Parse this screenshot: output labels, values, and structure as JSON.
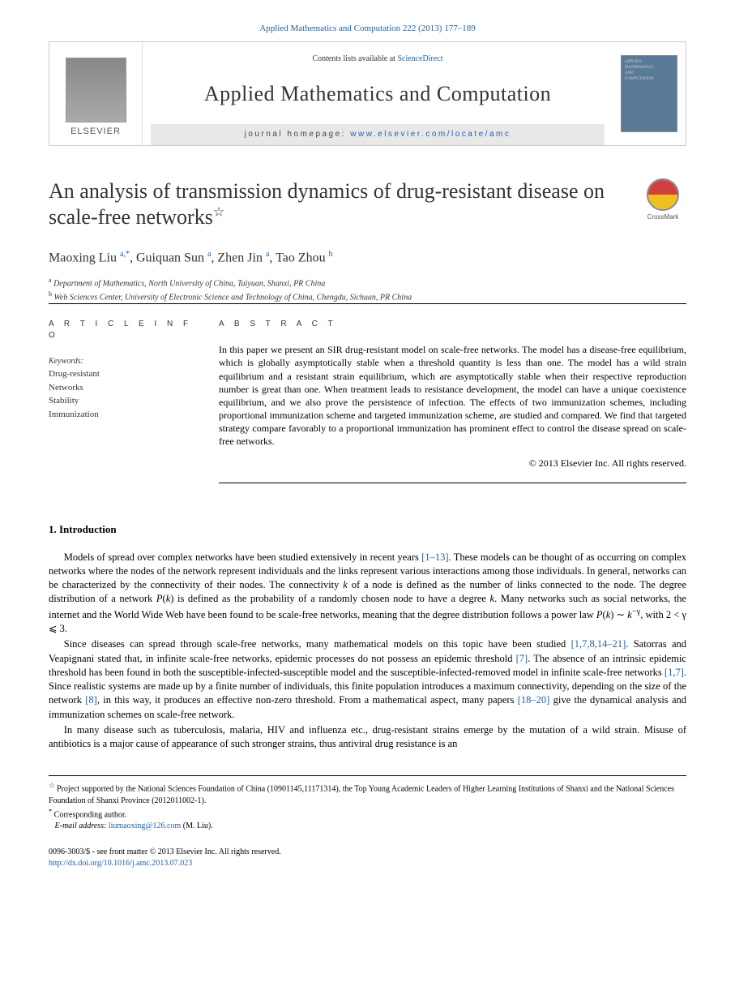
{
  "header": {
    "citation": "Applied Mathematics and Computation 222 (2013) 177–189"
  },
  "masthead": {
    "contents_prefix": "Contents lists available at ",
    "contents_link": "ScienceDirect",
    "journal_name": "Applied Mathematics and Computation",
    "homepage_prefix": "journal homepage: ",
    "homepage_url": "www.elsevier.com/locate/amc",
    "publisher": "ELSEVIER"
  },
  "article": {
    "title": "An analysis of transmission dynamics of drug-resistant disease on scale-free networks",
    "title_note_marker": "☆",
    "crossmark_label": "CrossMark",
    "authors_html": "Maoxing Liu <sup>a,*</sup>, Guiquan Sun <sup>a</sup>, Zhen Jin <sup>a</sup>, Tao Zhou <sup>b</sup>",
    "affiliations": [
      {
        "marker": "a",
        "text": "Department of Mathematics, North University of China, Taiyuan, Shanxi, PR China"
      },
      {
        "marker": "b",
        "text": "Web Sciences Center, University of Electronic Science and Technology of China, Chengdu, Sichuan, PR China"
      }
    ]
  },
  "info": {
    "heading": "A R T I C L E   I N F O",
    "keywords_label": "Keywords:",
    "keywords": [
      "Drug-resistant",
      "Networks",
      "Stability",
      "Immunization"
    ]
  },
  "abstract": {
    "heading": "A B S T R A C T",
    "text": "In this paper we present an SIR drug-resistant model on scale-free networks. The model has a disease-free equilibrium, which is globally asymptotically stable when a threshold quantity is less than one. The model has a wild strain equilibrium and a resistant strain equilibrium, which are asymptotically stable when their respective reproduction number is great than one. When treatment leads to resistance development, the model can have a unique coexistence equilibrium, and we also prove the persistence of infection. The effects of two immunization schemes, including proportional immunization scheme and targeted immunization scheme, are studied and compared. We find that targeted strategy compare favorably to a proportional immunization has prominent effect to control the disease spread on scale-free networks.",
    "copyright": "© 2013 Elsevier Inc. All rights reserved."
  },
  "section1": {
    "heading": "1. Introduction",
    "paragraphs": [
      "Models of spread over complex networks have been studied extensively in recent years [1–13]. These models can be thought of as occurring on complex networks where the nodes of the network represent individuals and the links represent various interactions among those individuals. In general, networks can be characterized by the connectivity of their nodes. The connectivity k of a node is defined as the number of links connected to the node. The degree distribution of a network P(k) is defined as the probability of a randomly chosen node to have a degree k. Many networks such as social networks, the internet and the World Wide Web have been found to be scale-free networks, meaning that the degree distribution follows a power law P(k) ∼ k⁻ᵞ, with 2 < γ ⩽ 3.",
      "Since diseases can spread through scale-free networks, many mathematical models on this topic have been studied [1,7,8,14–21]. Satorras and Veapignani stated that, in infinite scale-free networks, epidemic processes do not possess an epidemic threshold [7]. The absence of an intrinsic epidemic threshold has been found in both the susceptible-infected-susceptible model and the susceptible-infected-removed model in infinite scale-free networks [1,7]. Since realistic systems are made up by a finite number of individuals, this finite population introduces a maximum connectivity, depending on the size of the network [8], in this way, it produces an effective non-zero threshold. From a mathematical aspect, many papers [18–20] give the dynamical analysis and immunization schemes on scale-free network.",
      "In many disease such as tuberculosis, malaria, HIV and influenza etc., drug-resistant strains emerge by the mutation of a wild strain. Misuse of antibiotics is a major cause of appearance of such stronger strains, thus antiviral drug resistance is an"
    ]
  },
  "footnotes": {
    "project": "Project supported by the National Sciences Foundation of China (10901145,11171314), the Top Young Academic Leaders of Higher Learning Institutions of Shanxi and the National Sciences Foundation of Shanxi Province (2012011002-1).",
    "project_marker": "☆",
    "corresponding": "Corresponding author.",
    "corresponding_marker": "*",
    "email_label": "E-mail address:",
    "email": "liumaoxing@126.com",
    "email_author": "(M. Liu)."
  },
  "footer": {
    "issn_line": "0096-3003/$ - see front matter © 2013 Elsevier Inc. All rights reserved.",
    "doi": "http://dx.doi.org/10.1016/j.amc.2013.07.023"
  },
  "colors": {
    "link": "#2060a8",
    "text": "#333333",
    "rule": "#000000",
    "cover_bg": "#5a7a9a"
  }
}
